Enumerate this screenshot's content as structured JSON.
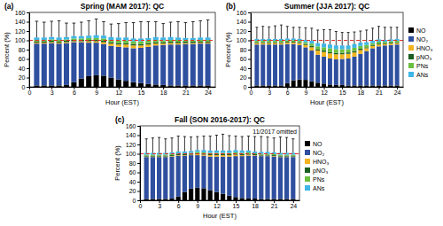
{
  "chart_data": [
    {
      "type": "bar",
      "stacked": true,
      "title": "Spring (MAM 2017): QC",
      "panel_label": "(a)",
      "x_label": "Hour (EST)",
      "y_label": "Percent (%)",
      "x": [
        1,
        2,
        3,
        4,
        5,
        6,
        7,
        8,
        9,
        10,
        11,
        12,
        13,
        14,
        15,
        16,
        17,
        18,
        19,
        20,
        21,
        22,
        23,
        24
      ],
      "xlim": [
        0,
        25
      ],
      "xticks": [
        0,
        3,
        6,
        9,
        12,
        15,
        18,
        21,
        24
      ],
      "ylim": [
        0,
        160
      ],
      "yticks": [
        0,
        20,
        40,
        60,
        80,
        100,
        120,
        140,
        160
      ],
      "reference_line": 100,
      "series": [
        {
          "name": "NO",
          "color": "#000000",
          "values": [
            3,
            3,
            3,
            3,
            4,
            10,
            18,
            23,
            25,
            24,
            20,
            16,
            13,
            10,
            8,
            6,
            5,
            4,
            3,
            3,
            3,
            3,
            3,
            3
          ]
        },
        {
          "name": "NO₂",
          "color": "#2f4f9f",
          "values": [
            90,
            90,
            91,
            90,
            90,
            86,
            78,
            72,
            70,
            68,
            68,
            70,
            72,
            73,
            76,
            80,
            84,
            86,
            88,
            88,
            89,
            89,
            90,
            90
          ]
        },
        {
          "name": "HNO₃",
          "color": "#f2b41e",
          "values": [
            2,
            2,
            2,
            2,
            2,
            2,
            2,
            3,
            3,
            4,
            5,
            5,
            6,
            6,
            5,
            5,
            4,
            3,
            3,
            3,
            2,
            2,
            2,
            2
          ]
        },
        {
          "name": "pNO₃",
          "color": "#1b5e20",
          "values": [
            3,
            3,
            3,
            3,
            3,
            3,
            3,
            3,
            3,
            3,
            3,
            3,
            3,
            3,
            3,
            3,
            3,
            3,
            3,
            3,
            3,
            3,
            3,
            3
          ]
        },
        {
          "name": "PNs",
          "color": "#6abf3f",
          "values": [
            3,
            3,
            3,
            3,
            3,
            3,
            3,
            4,
            4,
            5,
            5,
            6,
            6,
            6,
            6,
            5,
            5,
            4,
            4,
            4,
            3,
            3,
            3,
            3
          ]
        },
        {
          "name": "ANs",
          "color": "#3fb6e6",
          "values": [
            5,
            5,
            5,
            5,
            5,
            5,
            5,
            5,
            6,
            6,
            6,
            6,
            6,
            6,
            6,
            6,
            6,
            6,
            6,
            5,
            5,
            5,
            5,
            5
          ]
        }
      ],
      "errors": [
        35,
        33,
        34,
        36,
        30,
        28,
        30,
        32,
        35,
        30,
        28,
        30,
        32,
        34,
        36,
        35,
        33,
        30,
        32,
        34,
        33,
        35,
        36,
        38
      ]
    },
    {
      "type": "bar",
      "stacked": true,
      "title": "Summer (JJA 2017): QC",
      "panel_label": "(b)",
      "x_label": "Hour (EST)",
      "y_label": "Percent (%)",
      "legend": "right",
      "x": [
        1,
        2,
        3,
        4,
        5,
        6,
        7,
        8,
        9,
        10,
        11,
        12,
        13,
        14,
        15,
        16,
        17,
        18,
        19,
        20,
        21,
        22,
        23,
        24
      ],
      "xlim": [
        0,
        25
      ],
      "xticks": [
        0,
        3,
        6,
        9,
        12,
        15,
        18,
        21,
        24
      ],
      "ylim": [
        0,
        160
      ],
      "yticks": [
        0,
        20,
        40,
        60,
        80,
        100,
        120,
        140,
        160
      ],
      "reference_line": 100,
      "series": [
        {
          "name": "NO",
          "color": "#000000",
          "values": [
            3,
            3,
            3,
            3,
            3,
            8,
            14,
            16,
            15,
            12,
            9,
            7,
            5,
            4,
            4,
            3,
            3,
            3,
            3,
            3,
            3,
            3,
            3,
            3
          ]
        },
        {
          "name": "NO₂",
          "color": "#2f4f9f",
          "values": [
            88,
            88,
            88,
            88,
            88,
            84,
            78,
            74,
            70,
            66,
            60,
            58,
            56,
            55,
            56,
            58,
            62,
            68,
            74,
            80,
            84,
            86,
            87,
            88
          ]
        },
        {
          "name": "HNO₃",
          "color": "#f2b41e",
          "values": [
            3,
            3,
            3,
            3,
            3,
            3,
            3,
            4,
            5,
            7,
            9,
            10,
            11,
            11,
            10,
            10,
            9,
            8,
            6,
            5,
            4,
            3,
            3,
            3
          ]
        },
        {
          "name": "pNO₃",
          "color": "#1b5e20",
          "values": [
            2,
            2,
            2,
            2,
            2,
            2,
            2,
            2,
            2,
            3,
            3,
            3,
            3,
            3,
            3,
            3,
            3,
            3,
            2,
            2,
            2,
            2,
            2,
            2
          ]
        },
        {
          "name": "PNs",
          "color": "#6abf3f",
          "values": [
            3,
            3,
            3,
            3,
            3,
            3,
            3,
            3,
            4,
            5,
            6,
            7,
            8,
            8,
            8,
            7,
            7,
            6,
            5,
            4,
            4,
            3,
            3,
            3
          ]
        },
        {
          "name": "ANs",
          "color": "#3fb6e6",
          "values": [
            4,
            4,
            4,
            4,
            4,
            4,
            4,
            4,
            5,
            6,
            7,
            8,
            8,
            8,
            8,
            8,
            8,
            7,
            6,
            5,
            5,
            4,
            4,
            4
          ]
        }
      ],
      "errors": [
        25,
        27,
        26,
        28,
        30,
        26,
        24,
        25,
        26,
        27,
        28,
        30,
        32,
        30,
        28,
        28,
        26,
        25,
        26,
        27,
        28,
        27,
        26,
        25
      ]
    },
    {
      "type": "bar",
      "stacked": true,
      "title": "Fall (SON 2016-2017): QC",
      "panel_label": "(c)",
      "x_label": "Hour (EST)",
      "y_label": "Percent (%)",
      "legend": "right",
      "annotation": "11/2017 omitted",
      "x": [
        1,
        2,
        3,
        4,
        5,
        6,
        7,
        8,
        9,
        10,
        11,
        12,
        13,
        14,
        15,
        16,
        17,
        18,
        19,
        20,
        21,
        22,
        23,
        24
      ],
      "xlim": [
        0,
        25
      ],
      "xticks": [
        0,
        3,
        6,
        9,
        12,
        15,
        18,
        21,
        24
      ],
      "ylim": [
        0,
        160
      ],
      "yticks": [
        0,
        20,
        40,
        60,
        80,
        100,
        120,
        140,
        160
      ],
      "reference_line": 100,
      "series": [
        {
          "name": "NO",
          "color": "#000000",
          "values": [
            3,
            3,
            3,
            3,
            4,
            8,
            18,
            25,
            27,
            26,
            22,
            18,
            14,
            10,
            7,
            5,
            4,
            4,
            3,
            3,
            3,
            3,
            3,
            3
          ]
        },
        {
          "name": "NO₂",
          "color": "#2f4f9f",
          "values": [
            90,
            90,
            90,
            90,
            90,
            88,
            78,
            72,
            70,
            70,
            72,
            76,
            80,
            84,
            88,
            90,
            92,
            92,
            92,
            92,
            91,
            90,
            90,
            90
          ]
        },
        {
          "name": "HNO₃",
          "color": "#f2b41e",
          "values": [
            1,
            1,
            1,
            1,
            1,
            1,
            1,
            1,
            2,
            2,
            3,
            3,
            3,
            3,
            3,
            2,
            2,
            1,
            1,
            1,
            1,
            1,
            1,
            1
          ]
        },
        {
          "name": "pNO₃",
          "color": "#1b5e20",
          "values": [
            2,
            2,
            2,
            2,
            2,
            2,
            2,
            2,
            2,
            2,
            2,
            2,
            2,
            2,
            2,
            2,
            2,
            2,
            2,
            2,
            2,
            2,
            2,
            2
          ]
        },
        {
          "name": "PNs",
          "color": "#6abf3f",
          "values": [
            2,
            2,
            2,
            2,
            2,
            2,
            2,
            2,
            3,
            3,
            3,
            3,
            3,
            3,
            3,
            3,
            3,
            2,
            2,
            2,
            2,
            2,
            2,
            2
          ]
        },
        {
          "name": "ANs",
          "color": "#3fb6e6",
          "values": [
            4,
            4,
            4,
            4,
            4,
            4,
            4,
            4,
            4,
            5,
            5,
            5,
            5,
            5,
            5,
            5,
            4,
            4,
            4,
            4,
            4,
            4,
            4,
            4
          ]
        }
      ],
      "errors": [
        30,
        32,
        33,
        30,
        31,
        33,
        32,
        30,
        29,
        30,
        31,
        33,
        35,
        32,
        30,
        30,
        31,
        32,
        33,
        32,
        31,
        34,
        33,
        30
      ]
    }
  ]
}
